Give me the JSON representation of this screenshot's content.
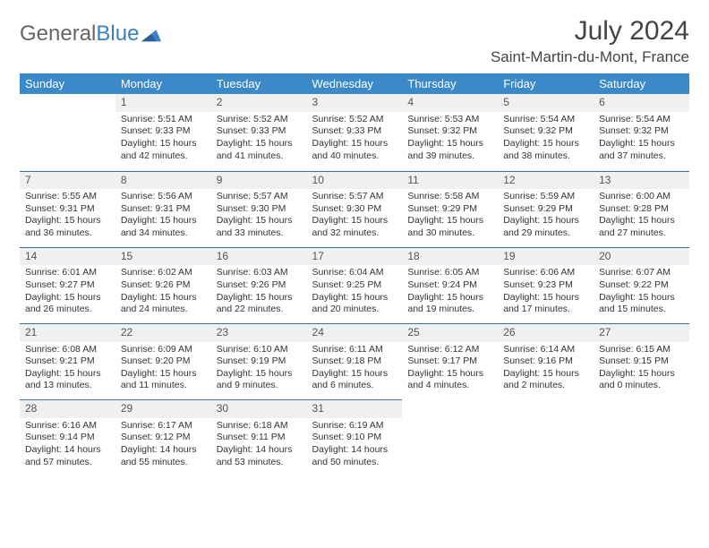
{
  "brand": {
    "part1": "General",
    "part2": "Blue"
  },
  "title": "July 2024",
  "location": "Saint-Martin-du-Mont, France",
  "colors": {
    "header_bg": "#3b89c9",
    "row_border": "#3b6fa0",
    "daynum_bg": "#eef0f1",
    "brand_blue": "#3b7fc4"
  },
  "weekdays": [
    "Sunday",
    "Monday",
    "Tuesday",
    "Wednesday",
    "Thursday",
    "Friday",
    "Saturday"
  ],
  "weeks": [
    [
      {
        "n": "",
        "sr": "",
        "ss": "",
        "dl": "",
        "empty": true
      },
      {
        "n": "1",
        "sr": "Sunrise: 5:51 AM",
        "ss": "Sunset: 9:33 PM",
        "dl": "Daylight: 15 hours and 42 minutes."
      },
      {
        "n": "2",
        "sr": "Sunrise: 5:52 AM",
        "ss": "Sunset: 9:33 PM",
        "dl": "Daylight: 15 hours and 41 minutes."
      },
      {
        "n": "3",
        "sr": "Sunrise: 5:52 AM",
        "ss": "Sunset: 9:33 PM",
        "dl": "Daylight: 15 hours and 40 minutes."
      },
      {
        "n": "4",
        "sr": "Sunrise: 5:53 AM",
        "ss": "Sunset: 9:32 PM",
        "dl": "Daylight: 15 hours and 39 minutes."
      },
      {
        "n": "5",
        "sr": "Sunrise: 5:54 AM",
        "ss": "Sunset: 9:32 PM",
        "dl": "Daylight: 15 hours and 38 minutes."
      },
      {
        "n": "6",
        "sr": "Sunrise: 5:54 AM",
        "ss": "Sunset: 9:32 PM",
        "dl": "Daylight: 15 hours and 37 minutes."
      }
    ],
    [
      {
        "n": "7",
        "sr": "Sunrise: 5:55 AM",
        "ss": "Sunset: 9:31 PM",
        "dl": "Daylight: 15 hours and 36 minutes."
      },
      {
        "n": "8",
        "sr": "Sunrise: 5:56 AM",
        "ss": "Sunset: 9:31 PM",
        "dl": "Daylight: 15 hours and 34 minutes."
      },
      {
        "n": "9",
        "sr": "Sunrise: 5:57 AM",
        "ss": "Sunset: 9:30 PM",
        "dl": "Daylight: 15 hours and 33 minutes."
      },
      {
        "n": "10",
        "sr": "Sunrise: 5:57 AM",
        "ss": "Sunset: 9:30 PM",
        "dl": "Daylight: 15 hours and 32 minutes."
      },
      {
        "n": "11",
        "sr": "Sunrise: 5:58 AM",
        "ss": "Sunset: 9:29 PM",
        "dl": "Daylight: 15 hours and 30 minutes."
      },
      {
        "n": "12",
        "sr": "Sunrise: 5:59 AM",
        "ss": "Sunset: 9:29 PM",
        "dl": "Daylight: 15 hours and 29 minutes."
      },
      {
        "n": "13",
        "sr": "Sunrise: 6:00 AM",
        "ss": "Sunset: 9:28 PM",
        "dl": "Daylight: 15 hours and 27 minutes."
      }
    ],
    [
      {
        "n": "14",
        "sr": "Sunrise: 6:01 AM",
        "ss": "Sunset: 9:27 PM",
        "dl": "Daylight: 15 hours and 26 minutes."
      },
      {
        "n": "15",
        "sr": "Sunrise: 6:02 AM",
        "ss": "Sunset: 9:26 PM",
        "dl": "Daylight: 15 hours and 24 minutes."
      },
      {
        "n": "16",
        "sr": "Sunrise: 6:03 AM",
        "ss": "Sunset: 9:26 PM",
        "dl": "Daylight: 15 hours and 22 minutes."
      },
      {
        "n": "17",
        "sr": "Sunrise: 6:04 AM",
        "ss": "Sunset: 9:25 PM",
        "dl": "Daylight: 15 hours and 20 minutes."
      },
      {
        "n": "18",
        "sr": "Sunrise: 6:05 AM",
        "ss": "Sunset: 9:24 PM",
        "dl": "Daylight: 15 hours and 19 minutes."
      },
      {
        "n": "19",
        "sr": "Sunrise: 6:06 AM",
        "ss": "Sunset: 9:23 PM",
        "dl": "Daylight: 15 hours and 17 minutes."
      },
      {
        "n": "20",
        "sr": "Sunrise: 6:07 AM",
        "ss": "Sunset: 9:22 PM",
        "dl": "Daylight: 15 hours and 15 minutes."
      }
    ],
    [
      {
        "n": "21",
        "sr": "Sunrise: 6:08 AM",
        "ss": "Sunset: 9:21 PM",
        "dl": "Daylight: 15 hours and 13 minutes."
      },
      {
        "n": "22",
        "sr": "Sunrise: 6:09 AM",
        "ss": "Sunset: 9:20 PM",
        "dl": "Daylight: 15 hours and 11 minutes."
      },
      {
        "n": "23",
        "sr": "Sunrise: 6:10 AM",
        "ss": "Sunset: 9:19 PM",
        "dl": "Daylight: 15 hours and 9 minutes."
      },
      {
        "n": "24",
        "sr": "Sunrise: 6:11 AM",
        "ss": "Sunset: 9:18 PM",
        "dl": "Daylight: 15 hours and 6 minutes."
      },
      {
        "n": "25",
        "sr": "Sunrise: 6:12 AM",
        "ss": "Sunset: 9:17 PM",
        "dl": "Daylight: 15 hours and 4 minutes."
      },
      {
        "n": "26",
        "sr": "Sunrise: 6:14 AM",
        "ss": "Sunset: 9:16 PM",
        "dl": "Daylight: 15 hours and 2 minutes."
      },
      {
        "n": "27",
        "sr": "Sunrise: 6:15 AM",
        "ss": "Sunset: 9:15 PM",
        "dl": "Daylight: 15 hours and 0 minutes."
      }
    ],
    [
      {
        "n": "28",
        "sr": "Sunrise: 6:16 AM",
        "ss": "Sunset: 9:14 PM",
        "dl": "Daylight: 14 hours and 57 minutes."
      },
      {
        "n": "29",
        "sr": "Sunrise: 6:17 AM",
        "ss": "Sunset: 9:12 PM",
        "dl": "Daylight: 14 hours and 55 minutes."
      },
      {
        "n": "30",
        "sr": "Sunrise: 6:18 AM",
        "ss": "Sunset: 9:11 PM",
        "dl": "Daylight: 14 hours and 53 minutes."
      },
      {
        "n": "31",
        "sr": "Sunrise: 6:19 AM",
        "ss": "Sunset: 9:10 PM",
        "dl": "Daylight: 14 hours and 50 minutes."
      },
      {
        "n": "",
        "sr": "",
        "ss": "",
        "dl": "",
        "empty": true,
        "trailing": true
      },
      {
        "n": "",
        "sr": "",
        "ss": "",
        "dl": "",
        "empty": true,
        "trailing": true
      },
      {
        "n": "",
        "sr": "",
        "ss": "",
        "dl": "",
        "empty": true,
        "trailing": true
      }
    ]
  ]
}
